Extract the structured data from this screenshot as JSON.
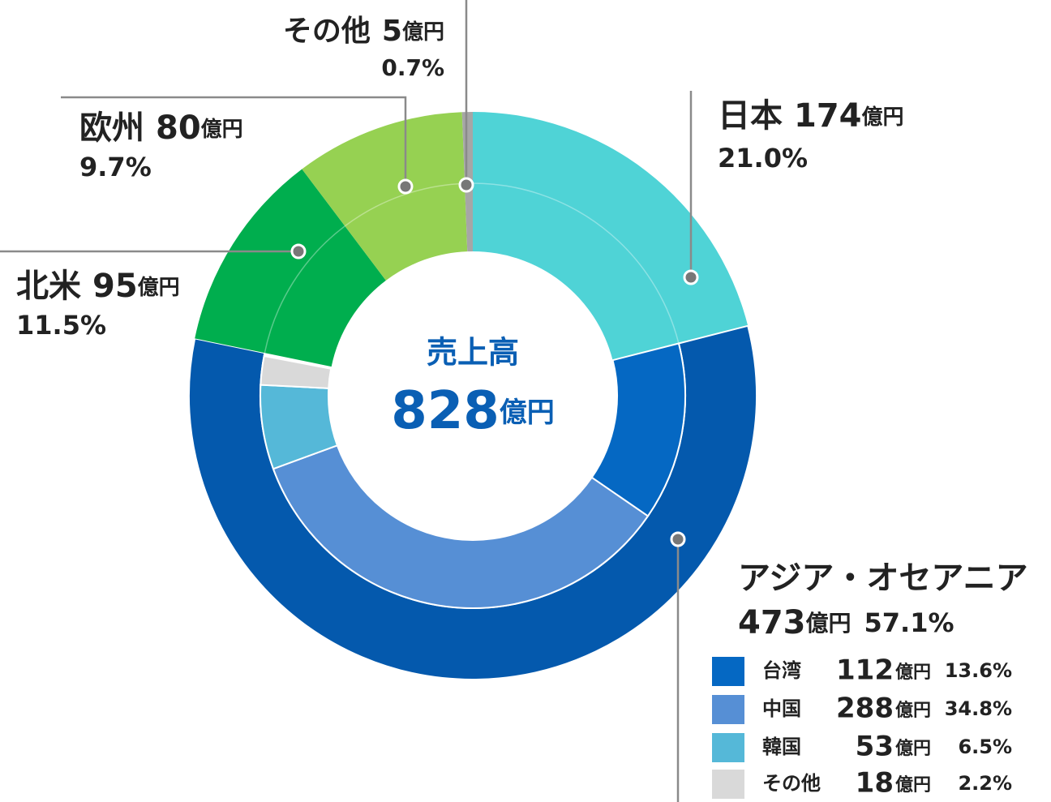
{
  "chart_data": {
    "type": "donut",
    "center_label": "売上高",
    "total": 828,
    "unit": "億円",
    "segments": [
      {
        "name": "日本",
        "value": 174,
        "share": "21.0%",
        "color": "#4fd3d6"
      },
      {
        "name": "アジア・オセアニア",
        "value": 473,
        "share": "57.1%",
        "color": "#0459ad",
        "breakdown": [
          {
            "name": "台湾",
            "value": 112,
            "share": "13.6%",
            "color": "#0568c3"
          },
          {
            "name": "中国",
            "value": 288,
            "share": "34.8%",
            "color": "#568fd5"
          },
          {
            "name": "韓国",
            "value": 53,
            "share": "6.5%",
            "color": "#55b8d8"
          },
          {
            "name": "その他",
            "value": 18,
            "share": "2.2%",
            "color": "#d9d9d9"
          }
        ]
      },
      {
        "name": "北米",
        "value": 95,
        "share": "11.5%",
        "color": "#00ae4e"
      },
      {
        "name": "欧州",
        "value": 80,
        "share": "9.7%",
        "color": "#96d152"
      },
      {
        "name": "その他",
        "value": 5,
        "share": "0.7%",
        "color": "#a6a6a6"
      }
    ]
  }
}
